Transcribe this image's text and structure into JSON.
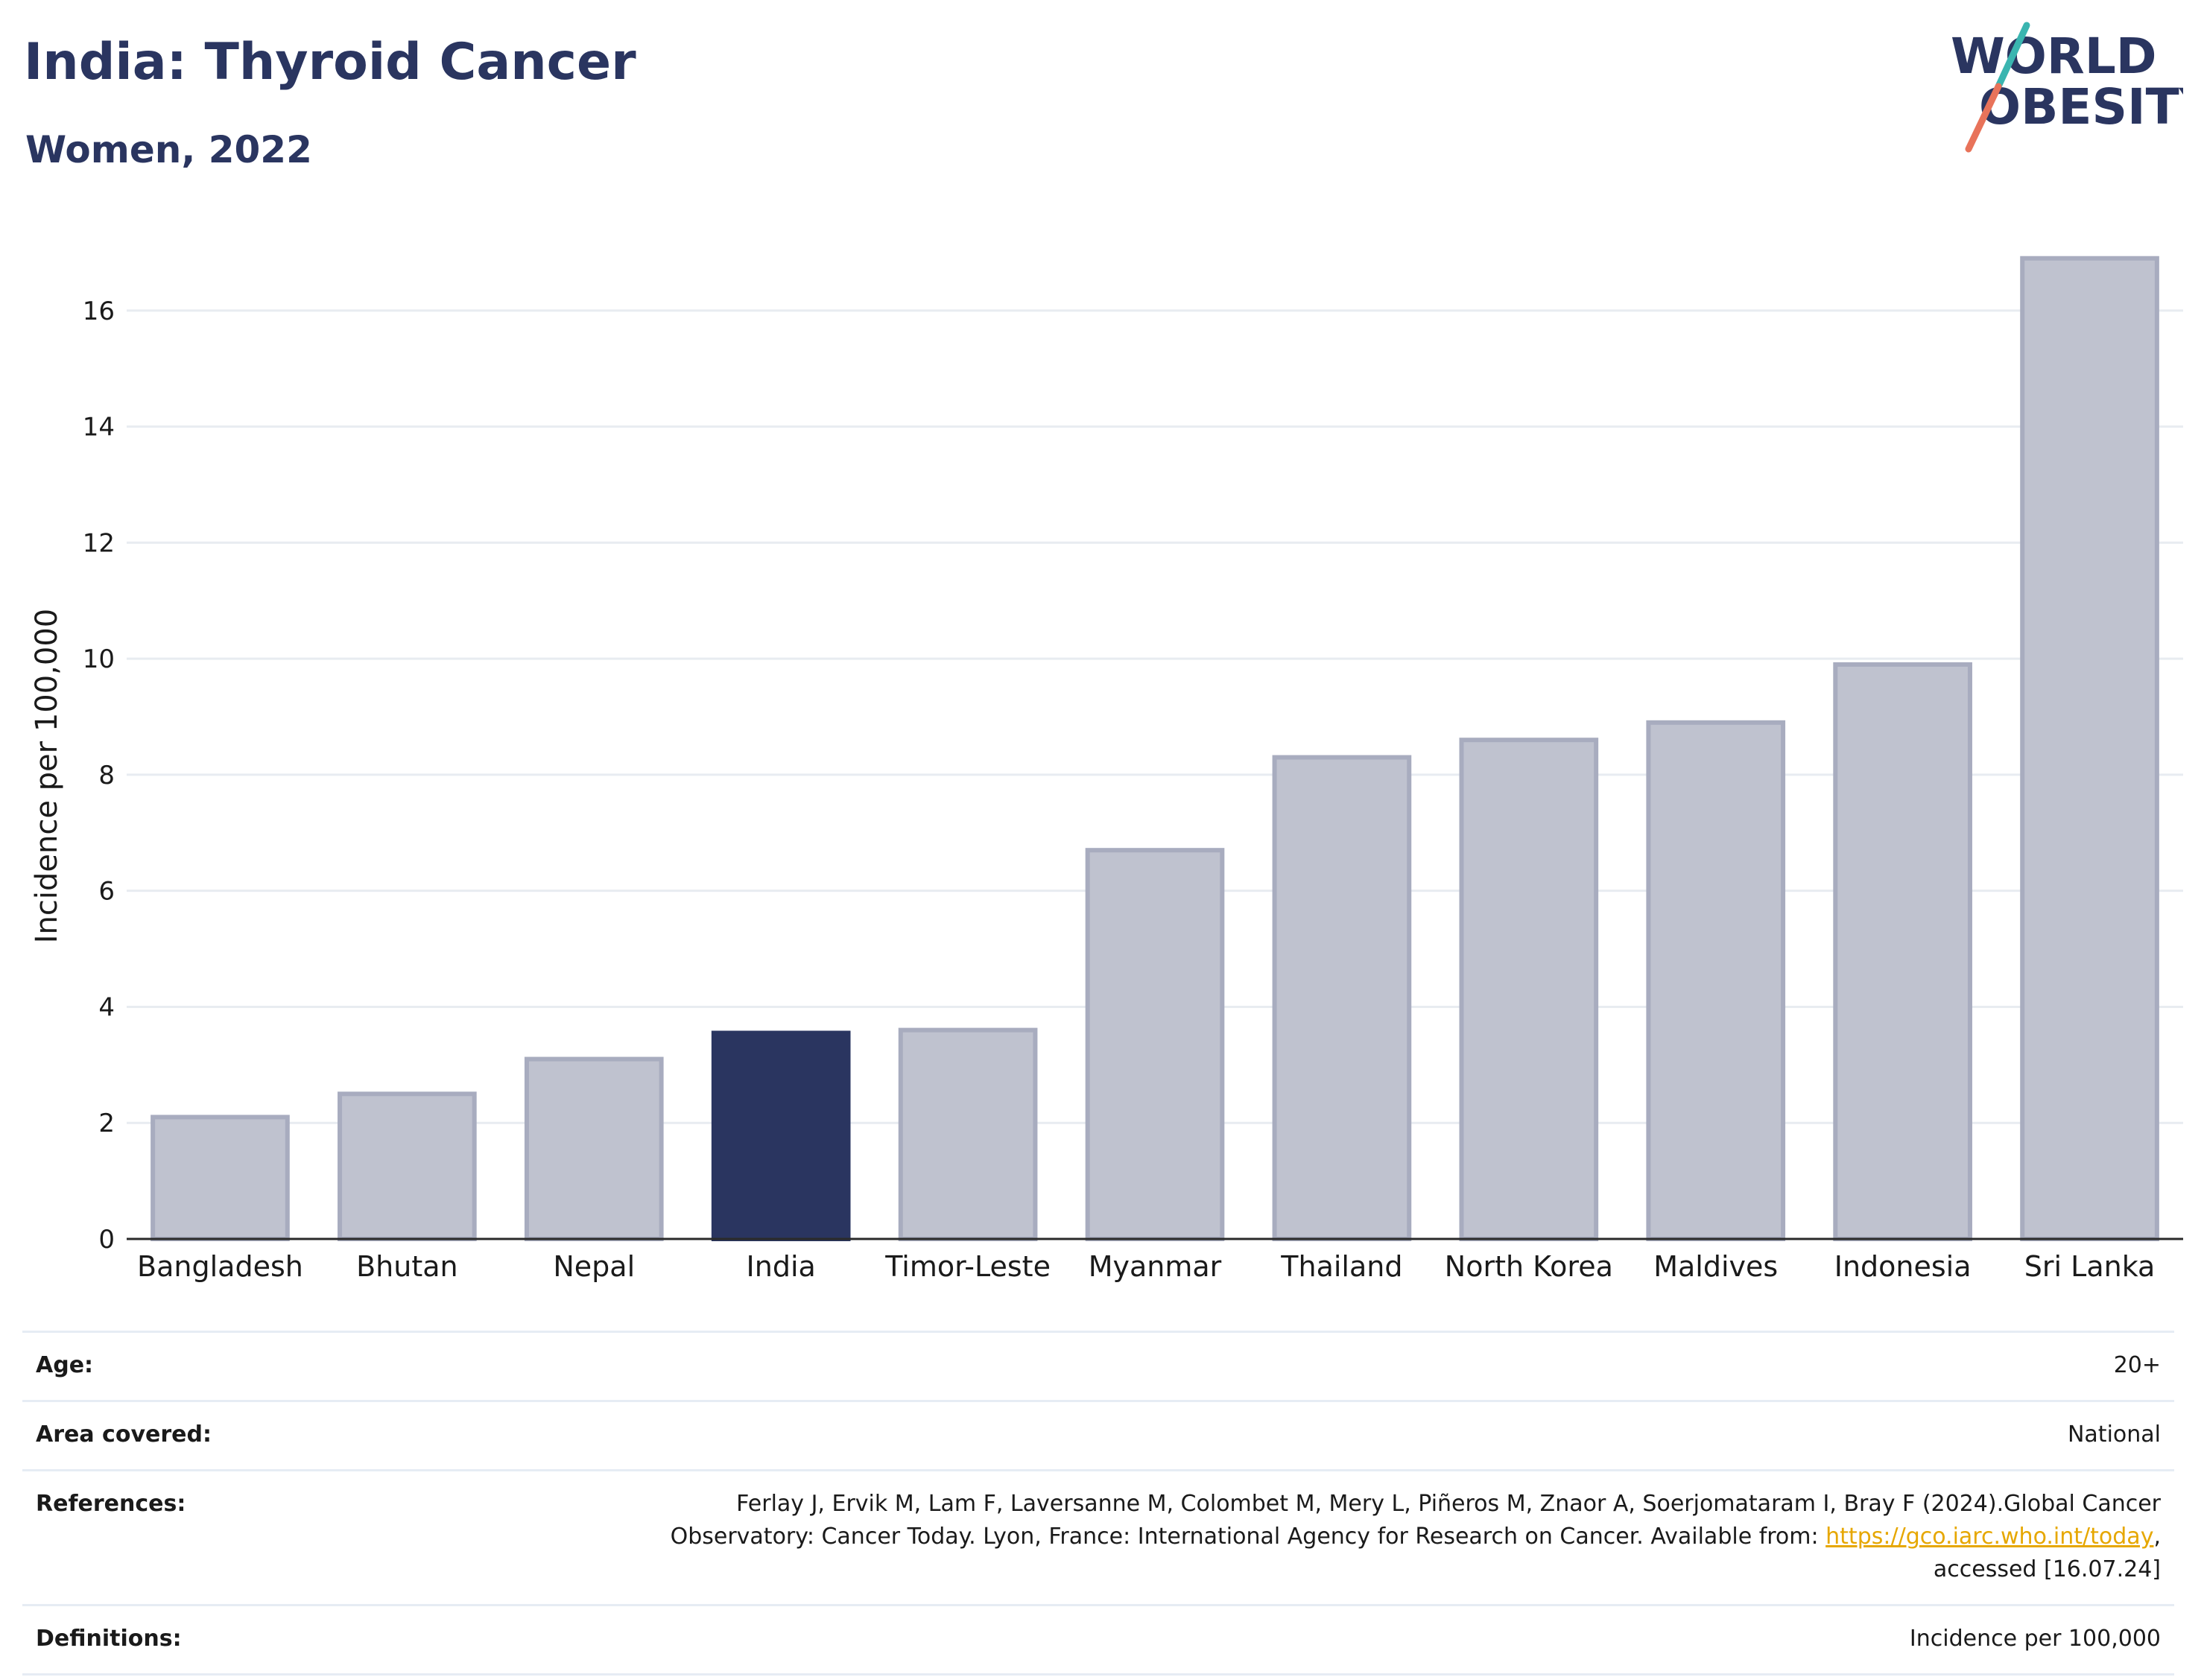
{
  "header": {
    "title": "India: Thyroid Cancer",
    "subtitle": "Women, 2022"
  },
  "logo": {
    "line1": "WORLD",
    "line2": "OBESITY",
    "colors": {
      "text": "#2a3560",
      "slash_top": "#3ab5b0",
      "slash_bottom": "#e8735a"
    }
  },
  "chart_data": {
    "type": "bar",
    "categories": [
      "Bangladesh",
      "Bhutan",
      "Nepal",
      "India",
      "Timor-Leste",
      "Myanmar",
      "Thailand",
      "North Korea",
      "Maldives",
      "Indonesia",
      "Sri Lanka"
    ],
    "values": [
      2.1,
      2.5,
      3.1,
      3.55,
      3.6,
      6.7,
      8.3,
      8.6,
      8.9,
      9.9,
      16.9
    ],
    "highlight": "India",
    "ylabel": "Incidence per 100,000",
    "xlabel": "",
    "ylim": [
      0,
      17.5
    ],
    "yticks": [
      0,
      2,
      4,
      6,
      8,
      10,
      12,
      14,
      16
    ],
    "grid": true,
    "colors": {
      "highlight": "#2a3560",
      "default": "#bfc2cf",
      "default_edge": "#a8acbf",
      "grid": "#e8ecf1"
    }
  },
  "info": {
    "age": {
      "label": "Age:",
      "value": "20+"
    },
    "area": {
      "label": "Area covered:",
      "value": "National"
    },
    "references": {
      "label": "References:",
      "line1": "Ferlay J, Ervik M, Lam F, Laversanne M, Colombet M, Mery L, Piñeros M, Znaor A, Soerjomataram I, Bray F (2024).Global Cancer",
      "line2_pre": "Observatory: Cancer Today. Lyon, France: International Agency for Research on Cancer. Available from: ",
      "link": "https://gco.iarc.who.int/today",
      "line2_post": ",",
      "line3": "accessed [16.07.24]"
    },
    "definitions": {
      "label": "Definitions:",
      "value": "Incidence per 100,000"
    }
  }
}
